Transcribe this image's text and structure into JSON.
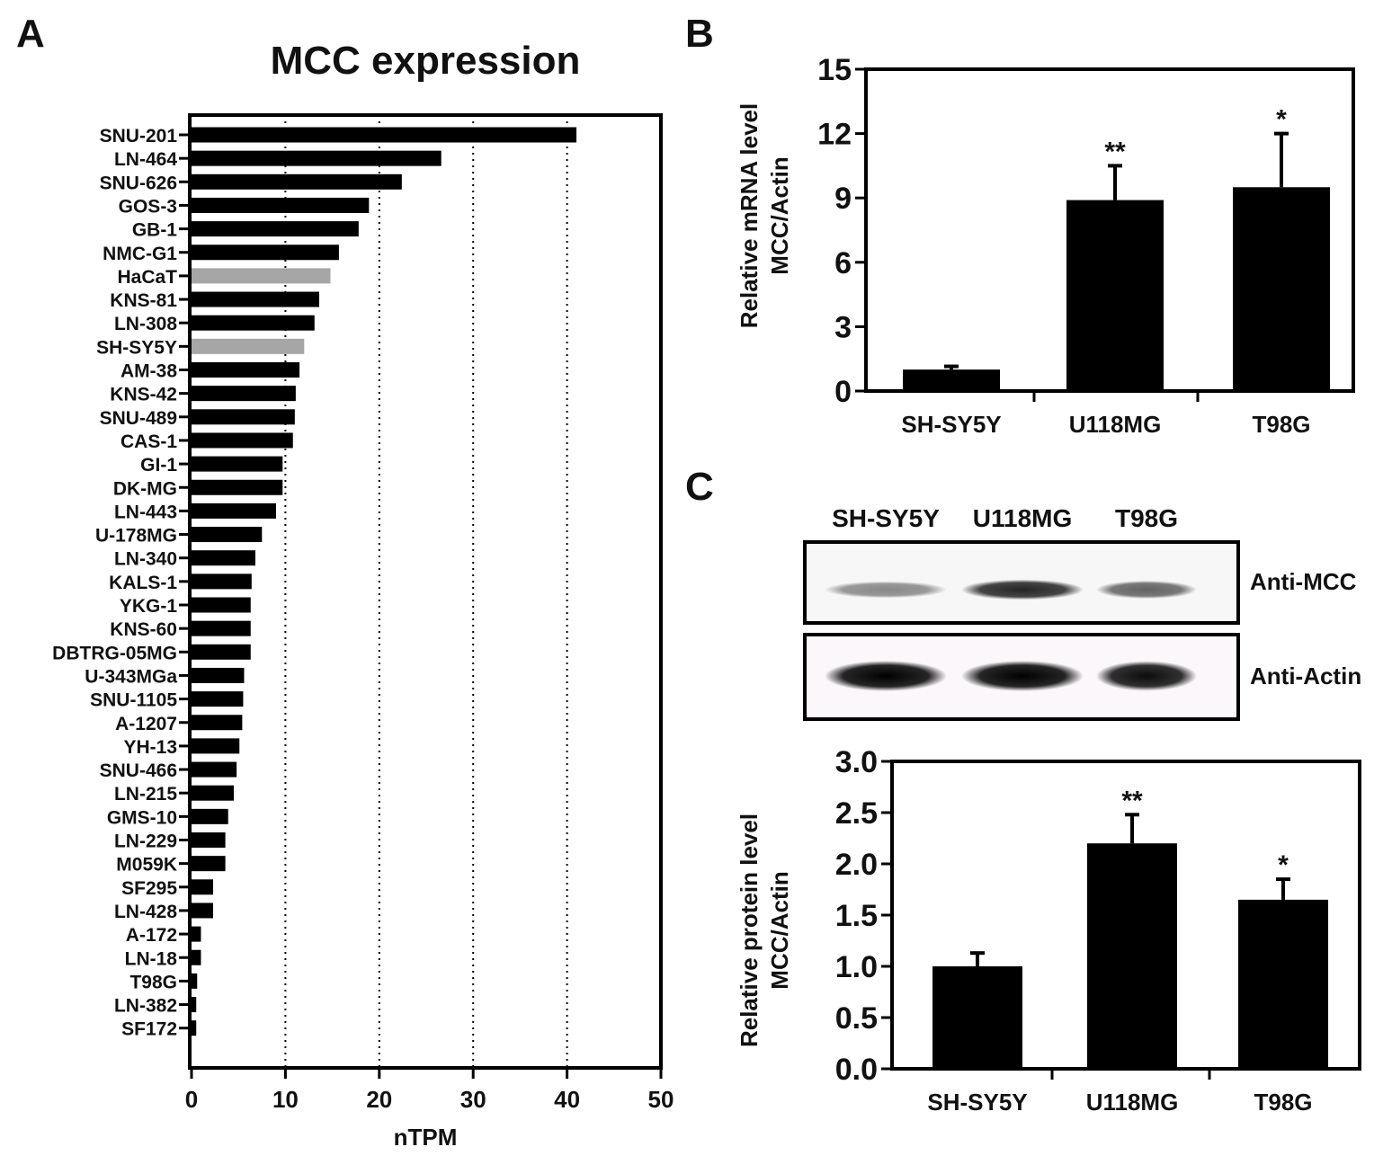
{
  "panels": {
    "a": "A",
    "b": "B",
    "c": "C"
  },
  "chart_data": [
    {
      "panel": "A",
      "type": "bar",
      "orientation": "horizontal",
      "title": "MCC expression",
      "xlabel": "nTPM",
      "ylabel": "",
      "xlim": [
        0,
        50
      ],
      "ticks": [
        0,
        10,
        20,
        30,
        40,
        50
      ],
      "gridlines": [
        10,
        20,
        30,
        40
      ],
      "grid": "dotted vertical",
      "categories": [
        "SNU-201",
        "LN-464",
        "SNU-626",
        "GOS-3",
        "GB-1",
        "NMC-G1",
        "HaCaT",
        "KNS-81",
        "LN-308",
        "SH-SY5Y",
        "AM-38",
        "KNS-42",
        "SNU-489",
        "CAS-1",
        "GI-1",
        "DK-MG",
        "LN-443",
        "U-178MG",
        "LN-340",
        "KALS-1",
        "YKG-1",
        "KNS-60",
        "DBTRG-05MG",
        "U-343MGa",
        "SNU-1105",
        "A-1207",
        "YH-13",
        "SNU-466",
        "LN-215",
        "GMS-10",
        "LN-229",
        "M059K",
        "SF295",
        "LN-428",
        "A-172",
        "LN-18",
        "T98G",
        "LN-382",
        "SF172"
      ],
      "values": [
        41.0,
        26.6,
        22.4,
        18.9,
        17.8,
        15.7,
        14.8,
        13.6,
        13.1,
        12.0,
        11.5,
        11.1,
        11.0,
        10.8,
        9.7,
        9.7,
        9.0,
        7.5,
        6.8,
        6.4,
        6.3,
        6.3,
        6.3,
        5.6,
        5.5,
        5.4,
        5.1,
        4.8,
        4.5,
        3.9,
        3.6,
        3.6,
        2.3,
        2.3,
        1.0,
        1.0,
        0.6,
        0.5,
        0.5
      ],
      "colors": {
        "default": "#000000",
        "highlight": "#a6a6a6"
      },
      "highlighted": [
        "HaCaT",
        "SH-SY5Y"
      ]
    },
    {
      "panel": "B",
      "type": "bar",
      "title": "",
      "ylabel_lines": [
        "Relative mRNA level",
        "MCC/Actin"
      ],
      "xlabel": "",
      "ylim": [
        0,
        15
      ],
      "ticks": [
        0,
        3,
        6,
        9,
        12,
        15
      ],
      "categories": [
        "SH-SY5Y",
        "U118MG",
        "T98G"
      ],
      "values": [
        1.0,
        8.9,
        9.5
      ],
      "errors": [
        0.15,
        1.6,
        2.5
      ],
      "significance": [
        "",
        "**",
        "*"
      ]
    },
    {
      "panel": "C",
      "type": "bar",
      "title": "",
      "ylabel_lines": [
        "Relative protein level",
        "MCC/Actin"
      ],
      "xlabel": "",
      "ylim": [
        0,
        3.0
      ],
      "ticks": [
        "0.0",
        "0.5",
        "1.0",
        "1.5",
        "2.0",
        "2.5",
        "3.0"
      ],
      "categories": [
        "SH-SY5Y",
        "U118MG",
        "T98G"
      ],
      "values": [
        1.0,
        2.2,
        1.65
      ],
      "errors": [
        0.13,
        0.28,
        0.2
      ],
      "significance": [
        "",
        "**",
        "*"
      ]
    }
  ],
  "western_blot": {
    "lanes": [
      "SH-SY5Y",
      "U118MG",
      "T98G"
    ],
    "rows": [
      {
        "label": "Anti-MCC",
        "intensity": [
          0.45,
          0.85,
          0.6
        ]
      },
      {
        "label": "Anti-Actin",
        "intensity": [
          1.0,
          1.0,
          0.95
        ]
      }
    ]
  }
}
